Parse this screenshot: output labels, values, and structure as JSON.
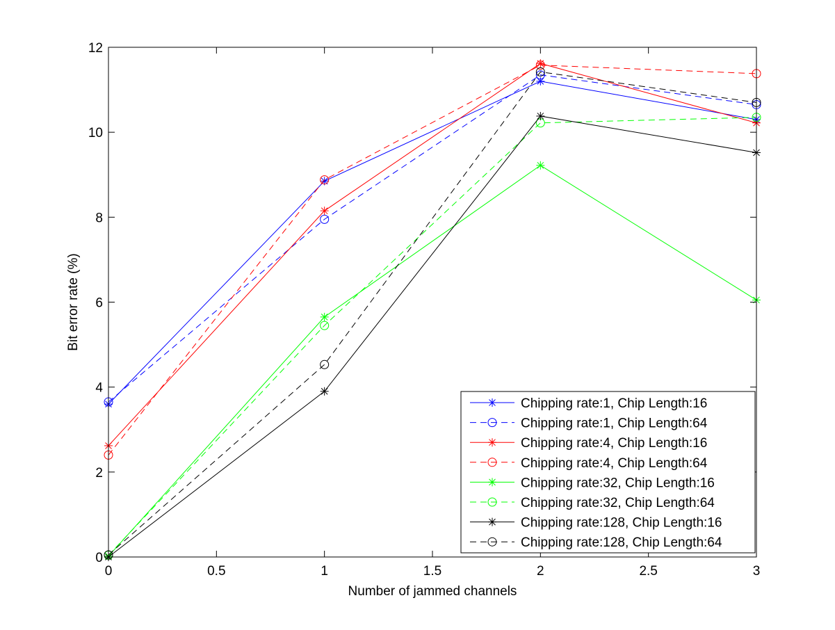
{
  "chart_data": {
    "type": "line",
    "xlabel": "Number of jammed channels",
    "ylabel": "Bit error rate (%)",
    "xlim": [
      0,
      3
    ],
    "ylim": [
      0,
      12
    ],
    "xticks": [
      0,
      0.5,
      1,
      1.5,
      2,
      2.5,
      3
    ],
    "xtick_labels": [
      "0",
      "0.5",
      "1",
      "1.5",
      "2",
      "2.5",
      "3"
    ],
    "yticks": [
      0,
      2,
      4,
      6,
      8,
      10,
      12
    ],
    "ytick_labels": [
      "0",
      "2",
      "4",
      "6",
      "8",
      "10",
      "12"
    ],
    "grid": false,
    "legend_position": "bottom-right",
    "x": [
      0,
      1,
      2,
      3
    ],
    "series": [
      {
        "name": "Chipping rate:1, Chip Length:16",
        "color": "#0000ff",
        "dash": "solid",
        "marker": "star",
        "values": [
          3.6,
          8.85,
          11.2,
          10.3
        ]
      },
      {
        "name": "Chipping rate:1, Chip Length:64",
        "color": "#0000ff",
        "dash": "dashed",
        "marker": "circle",
        "values": [
          3.65,
          7.95,
          11.35,
          10.65
        ]
      },
      {
        "name": "Chipping rate:4, Chip Length:16",
        "color": "#ff0000",
        "dash": "solid",
        "marker": "star",
        "values": [
          2.62,
          8.15,
          11.62,
          10.22
        ]
      },
      {
        "name": "Chipping rate:4, Chip Length:64",
        "color": "#ff0000",
        "dash": "dashed",
        "marker": "circle",
        "values": [
          2.4,
          8.88,
          11.58,
          11.38
        ]
      },
      {
        "name": "Chipping rate:32, Chip Length:16",
        "color": "#00ff00",
        "dash": "solid",
        "marker": "star",
        "values": [
          0.02,
          5.65,
          9.22,
          6.05
        ]
      },
      {
        "name": "Chipping rate:32, Chip Length:64",
        "color": "#00ff00",
        "dash": "dashed",
        "marker": "circle",
        "values": [
          0.04,
          5.45,
          10.22,
          10.35
        ]
      },
      {
        "name": "Chipping rate:128, Chip Length:16",
        "color": "#000000",
        "dash": "solid",
        "marker": "star",
        "values": [
          0.0,
          3.9,
          10.38,
          9.52
        ]
      },
      {
        "name": "Chipping rate:128, Chip Length:64",
        "color": "#000000",
        "dash": "dashed",
        "marker": "circle",
        "values": [
          0.05,
          4.53,
          11.42,
          10.7
        ]
      }
    ]
  }
}
